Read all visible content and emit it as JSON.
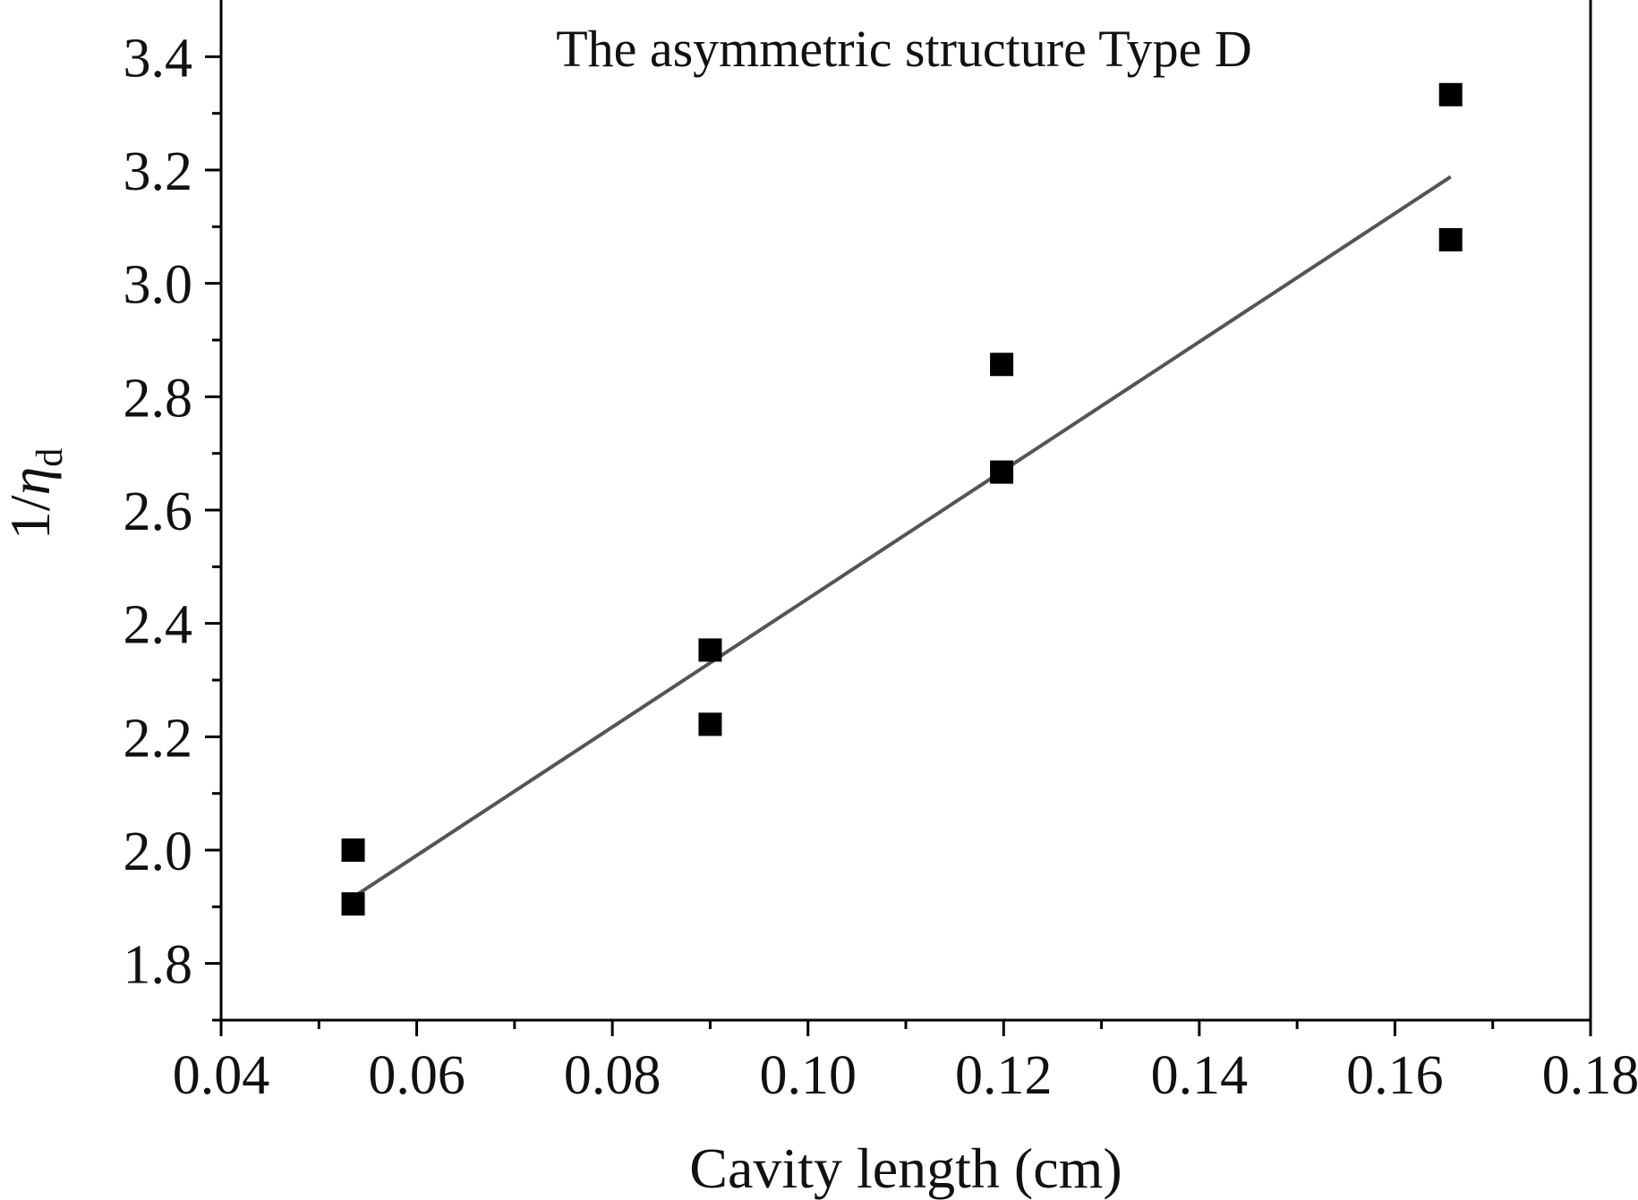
{
  "chart_data": {
    "type": "scatter",
    "title": "The asymmetric structure Type D",
    "xlabel": "Cavity length (cm)",
    "ylabel": {
      "prefix": "1/",
      "symbol": "η",
      "subscript": "d"
    },
    "xlim": [
      0.04,
      0.18
    ],
    "ylim": [
      1.7,
      3.5
    ],
    "x_ticks": [
      0.04,
      0.06,
      0.08,
      0.1,
      0.12,
      0.14,
      0.16,
      0.18
    ],
    "x_tick_labels": [
      "0.04",
      "0.06",
      "0.08",
      "0.10",
      "0.12",
      "0.14",
      "0.16",
      "0.18"
    ],
    "y_ticks": [
      1.8,
      2.0,
      2.2,
      2.4,
      2.6,
      2.8,
      3.0,
      3.2,
      3.4
    ],
    "y_tick_labels": [
      "1.8",
      "2.0",
      "2.2",
      "2.4",
      "2.6",
      "2.8",
      "3.0",
      "3.2",
      "3.4"
    ],
    "x_minor_step": 0.01,
    "y_minor_step": 0.1,
    "grid": false,
    "legend": "none",
    "series": [
      {
        "marker": "square",
        "color": "#000000",
        "points": [
          {
            "x": 0.0535,
            "y": 2.0
          },
          {
            "x": 0.0535,
            "y": 1.905
          },
          {
            "x": 0.09,
            "y": 2.353
          },
          {
            "x": 0.09,
            "y": 2.222
          },
          {
            "x": 0.1198,
            "y": 2.857
          },
          {
            "x": 0.1198,
            "y": 2.667
          },
          {
            "x": 0.1657,
            "y": 3.333
          },
          {
            "x": 0.1657,
            "y": 3.077
          }
        ]
      }
    ],
    "fit_line": {
      "color": "#555555",
      "points": [
        {
          "x": 0.0535,
          "y": 1.917
        },
        {
          "x": 0.1657,
          "y": 3.188
        }
      ]
    }
  }
}
